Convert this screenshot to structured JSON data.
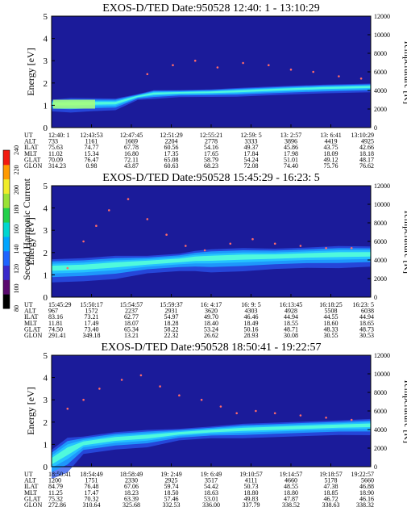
{
  "figure": {
    "colorbar": {
      "label": "Second Harmonic Current",
      "ticks": [
        "80",
        "100",
        "120",
        "140",
        "160",
        "180",
        "200",
        "220",
        "240"
      ],
      "colors": [
        "#000000",
        "#5a0a6e",
        "#3a2acb",
        "#1f64ff",
        "#00a5ff",
        "#00d6d0",
        "#22d04a",
        "#9ae234",
        "#f0ec28",
        "#ff9a00",
        "#f21a10"
      ]
    },
    "background_color": "#1b1b9a",
    "band_colors": [
      "#2a55ee",
      "#1ea0ff",
      "#25c7ff",
      "#55ffd8",
      "#aaff7a"
    ],
    "dot_color": "#ff6a6a"
  },
  "chart_data": [
    {
      "type": "heatmap",
      "title": "EXOS-D/TED   Date:950528  12:40: 1 - 13:10:29",
      "ylabel": "Energy [eV]",
      "ylabel_right": "Temperature [K]",
      "ylim": [
        0,
        5
      ],
      "yticks": [
        "0",
        "1",
        "2",
        "3",
        "4",
        "5"
      ],
      "ylim_right": [
        0,
        12000
      ],
      "yticks_right": [
        "0",
        "2000",
        "4000",
        "6000",
        "8000",
        "10000",
        "12000"
      ],
      "row_labels": [
        "UT",
        "ALT",
        "ILAT",
        "MLT",
        "GLAT",
        "GLON"
      ],
      "columns": [
        [
          "12:40: 1",
          "733",
          "75.63",
          "11.02",
          "70.09",
          "314.23"
        ],
        [
          "12:43:53",
          "1161",
          "74.77",
          "15.34",
          "76.47",
          "0.98"
        ],
        [
          "12:47:45",
          "1669",
          "67.78",
          "16.80",
          "72.11",
          "43.87"
        ],
        [
          "12:51:29",
          "2204",
          "60.56",
          "17.35",
          "65.08",
          "60.63"
        ],
        [
          "12:55:21",
          "2778",
          "54.16",
          "17.65",
          "58.79",
          "68.23"
        ],
        [
          "12:59: 5",
          "3333",
          "49.37",
          "17.84",
          "54.24",
          "72.08"
        ],
        [
          "13: 2:57",
          "3896",
          "45.86",
          "17.98",
          "51.01",
          "74.40"
        ],
        [
          "13: 6:41",
          "4419",
          "43.75",
          "18.09",
          "49.12",
          "75.76"
        ],
        [
          "13:10:29",
          "4925",
          "42.66",
          "18.18",
          "48.17",
          "76.62"
        ]
      ],
      "band": [
        [
          0.0,
          0.95,
          1.15
        ],
        [
          0.06,
          0.95,
          1.2
        ],
        [
          0.13,
          0.98,
          1.2
        ],
        [
          0.2,
          1.0,
          1.2
        ],
        [
          0.27,
          1.35,
          1.45
        ],
        [
          0.32,
          1.45,
          1.6
        ],
        [
          0.4,
          1.5,
          1.62
        ],
        [
          0.5,
          1.52,
          1.65
        ],
        [
          0.58,
          1.55,
          1.7
        ],
        [
          0.66,
          1.6,
          1.75
        ],
        [
          0.75,
          1.65,
          1.8
        ],
        [
          0.85,
          1.7,
          1.85
        ],
        [
          1.0,
          1.75,
          1.9
        ]
      ],
      "dots": [
        [
          0.3,
          2.4
        ],
        [
          0.38,
          2.8
        ],
        [
          0.45,
          3.0
        ],
        [
          0.52,
          2.7
        ],
        [
          0.6,
          2.9
        ],
        [
          0.68,
          2.8
        ],
        [
          0.75,
          2.6
        ],
        [
          0.82,
          2.5
        ],
        [
          0.9,
          2.3
        ],
        [
          0.97,
          2.2
        ]
      ]
    },
    {
      "type": "heatmap",
      "title": "EXOS-D/TED   Date:950528  15:45:29 - 16:23: 5",
      "ylabel": "Energy [eV]",
      "ylabel_right": "Temperature [K]",
      "ylim": [
        0,
        5
      ],
      "yticks": [
        "0",
        "1",
        "2",
        "3",
        "4",
        "5"
      ],
      "ylim_right": [
        0,
        12000
      ],
      "yticks_right": [
        "0",
        "2000",
        "4000",
        "6000",
        "8000",
        "10000",
        "12000"
      ],
      "row_labels": [
        "UT",
        "ALT",
        "ILAT",
        "MLT",
        "GLAT",
        "GLON"
      ],
      "columns": [
        [
          "15:45:29",
          "967",
          "83.16",
          "11.81",
          "74.50",
          "291.41"
        ],
        [
          "15:50:17",
          "1572",
          "73.21",
          "17.49",
          "73.40",
          "349.18"
        ],
        [
          "15:54:57",
          "2237",
          "62.77",
          "18.07",
          "65.34",
          "13.21"
        ],
        [
          "15:59:37",
          "2931",
          "54.97",
          "18.28",
          "58.22",
          "22.32"
        ],
        [
          "16: 4:17",
          "3620",
          "49.70",
          "18.40",
          "53.24",
          "26.62"
        ],
        [
          "16: 9: 5",
          "4303",
          "46.46",
          "18.49",
          "50.16",
          "28.93"
        ],
        [
          "16:13:45",
          "4928",
          "44.94",
          "18.55",
          "48.71",
          "30.08"
        ],
        [
          "16:18:25",
          "5508",
          "44.55",
          "18.60",
          "48.33",
          "30.55"
        ],
        [
          "16:23: 5",
          "6038",
          "44.94",
          "18.65",
          "48.73",
          "30.53"
        ]
      ],
      "band": [
        [
          0.0,
          1.1,
          1.5
        ],
        [
          0.1,
          1.15,
          1.55
        ],
        [
          0.2,
          1.25,
          1.65
        ],
        [
          0.3,
          1.4,
          1.7
        ],
        [
          0.4,
          1.5,
          1.8
        ],
        [
          0.45,
          1.55,
          1.9
        ],
        [
          0.5,
          1.55,
          1.95
        ],
        [
          0.6,
          1.6,
          2.0
        ],
        [
          0.7,
          1.65,
          2.0
        ],
        [
          0.8,
          1.7,
          2.05
        ],
        [
          0.9,
          1.72,
          2.1
        ],
        [
          1.0,
          1.75,
          2.1
        ]
      ],
      "dots": [
        [
          0.05,
          1.3
        ],
        [
          0.1,
          2.5
        ],
        [
          0.14,
          3.2
        ],
        [
          0.18,
          3.9
        ],
        [
          0.24,
          4.4
        ],
        [
          0.3,
          3.5
        ],
        [
          0.36,
          2.8
        ],
        [
          0.42,
          2.3
        ],
        [
          0.48,
          2.1
        ],
        [
          0.56,
          2.4
        ],
        [
          0.63,
          2.6
        ],
        [
          0.7,
          2.4
        ],
        [
          0.78,
          2.3
        ],
        [
          0.86,
          2.2
        ],
        [
          0.94,
          2.2
        ]
      ]
    },
    {
      "type": "heatmap",
      "title": "EXOS-D/TED   Date:950528  18:50:41 - 19:22:57",
      "ylabel": "Energy [eV]",
      "ylabel_right": "Temperature [K]",
      "ylim": [
        0,
        5
      ],
      "yticks": [
        "0",
        "1",
        "2",
        "3",
        "4",
        "5"
      ],
      "ylim_right": [
        0,
        12000
      ],
      "yticks_right": [
        "0",
        "2000",
        "4000",
        "6000",
        "8000",
        "10000",
        "12000"
      ],
      "row_labels": [
        "UT",
        "ALT",
        "ILAT",
        "MLT",
        "GLAT",
        "GLON"
      ],
      "columns": [
        [
          "18:50:41",
          "1200",
          "84.79",
          "11.25",
          "75.32",
          "272.86"
        ],
        [
          "18:54:49",
          "1751",
          "76.48",
          "17.47",
          "70.32",
          "310.64"
        ],
        [
          "18:58:49",
          "2330",
          "67.06",
          "18.23",
          "63.39",
          "325.68"
        ],
        [
          "19: 2:49",
          "2925",
          "59.74",
          "18.50",
          "57.46",
          "332.53"
        ],
        [
          "19: 6:49",
          "3517",
          "54.42",
          "18.63",
          "53.01",
          "336.00"
        ],
        [
          "19:10:57",
          "4111",
          "50.73",
          "18.80",
          "49.83",
          "337.79"
        ],
        [
          "19:14:57",
          "4660",
          "48.55",
          "18.80",
          "47.87",
          "338.52"
        ],
        [
          "19:18:57",
          "5178",
          "47.38",
          "18.85",
          "46.72",
          "338.63"
        ],
        [
          "19:22:57",
          "5660",
          "46.88",
          "18.90",
          "46.16",
          "338.32"
        ]
      ],
      "band": [
        [
          0.0,
          0.0,
          0.5
        ],
        [
          0.05,
          0.4,
          1.0
        ],
        [
          0.1,
          0.9,
          1.2
        ],
        [
          0.2,
          1.1,
          1.4
        ],
        [
          0.3,
          1.2,
          1.5
        ],
        [
          0.4,
          1.4,
          1.6
        ],
        [
          0.5,
          1.5,
          1.7
        ],
        [
          0.6,
          1.55,
          1.8
        ],
        [
          0.7,
          1.6,
          1.85
        ],
        [
          0.8,
          1.65,
          1.9
        ],
        [
          0.9,
          1.7,
          1.95
        ],
        [
          1.0,
          1.72,
          2.0
        ]
      ],
      "dots": [
        [
          0.05,
          2.6
        ],
        [
          0.1,
          3.0
        ],
        [
          0.15,
          3.5
        ],
        [
          0.22,
          3.9
        ],
        [
          0.28,
          4.1
        ],
        [
          0.34,
          3.6
        ],
        [
          0.4,
          3.2
        ],
        [
          0.47,
          3.0
        ],
        [
          0.53,
          2.7
        ],
        [
          0.58,
          2.4
        ],
        [
          0.64,
          2.5
        ],
        [
          0.7,
          2.4
        ],
        [
          0.78,
          2.3
        ],
        [
          0.86,
          2.2
        ],
        [
          0.94,
          2.1
        ]
      ]
    }
  ]
}
